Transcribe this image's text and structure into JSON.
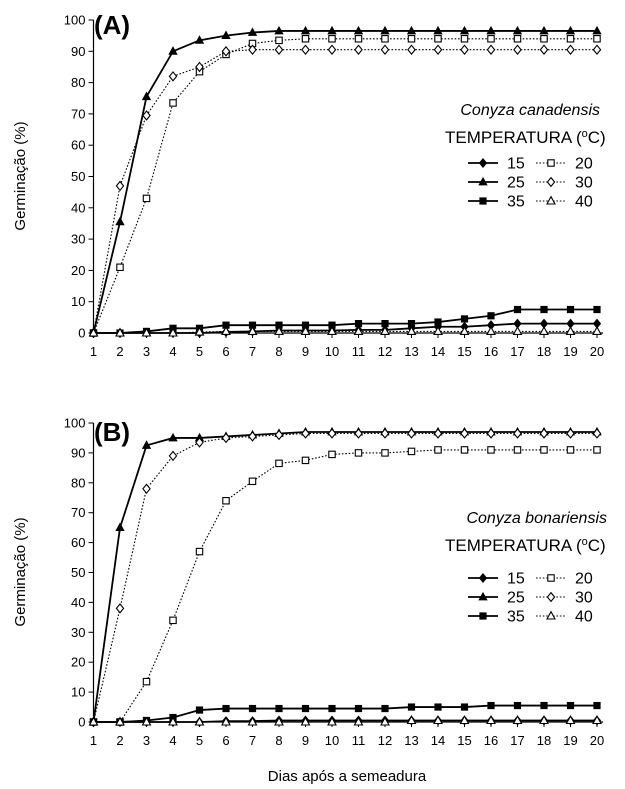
{
  "chart_data": [
    {
      "type": "line",
      "panel_label": "(A)",
      "species": "Conyza canadensis",
      "legend_title": "TEMPERATURA (",
      "legend_title_sup": "o",
      "legend_title_end": "C)",
      "ylabel": "Germinação (%)",
      "xlabel": "",
      "ylim": [
        0,
        100
      ],
      "yticks": [
        0,
        10,
        20,
        30,
        40,
        50,
        60,
        70,
        80,
        90,
        100
      ],
      "x": [
        1,
        2,
        3,
        4,
        5,
        6,
        7,
        8,
        9,
        10,
        11,
        12,
        13,
        14,
        15,
        16,
        17,
        18,
        19,
        20
      ],
      "series": [
        {
          "name": "15",
          "marker": "diamond",
          "dash": "solid",
          "values": [
            0,
            0,
            0,
            0,
            0,
            0.3,
            0.5,
            0.8,
            0.8,
            0.8,
            1,
            1,
            1.5,
            2,
            2,
            2.5,
            3,
            3,
            3,
            3
          ]
        },
        {
          "name": "20",
          "marker": "square-open",
          "dash": "dotted",
          "values": [
            0,
            21,
            43,
            73.5,
            83.5,
            89,
            92.5,
            93.5,
            94,
            94,
            94,
            94,
            94,
            94,
            94,
            94,
            94,
            94,
            94,
            94
          ]
        },
        {
          "name": "25",
          "marker": "triangle",
          "dash": "solid",
          "values": [
            0,
            35.5,
            75.5,
            90,
            93.5,
            95,
            96,
            96.5,
            96.5,
            96.5,
            96.5,
            96.5,
            96.5,
            96.5,
            96.5,
            96.5,
            96.5,
            96.5,
            96.5,
            96.5
          ]
        },
        {
          "name": "30",
          "marker": "diamond-open",
          "dash": "dotted",
          "values": [
            0,
            47,
            69.5,
            82,
            85,
            90,
            90.5,
            90.5,
            90.5,
            90.5,
            90.5,
            90.5,
            90.5,
            90.5,
            90.5,
            90.5,
            90.5,
            90.5,
            90.5,
            90.5
          ]
        },
        {
          "name": "35",
          "marker": "square",
          "dash": "solid",
          "values": [
            0,
            0,
            0.5,
            1.5,
            1.5,
            2.5,
            2.5,
            2.5,
            2.5,
            2.5,
            3,
            3,
            3,
            3.5,
            4.5,
            5.5,
            7.5,
            7.5,
            7.5,
            7.5
          ]
        },
        {
          "name": "40",
          "marker": "triangle-open",
          "dash": "dotted",
          "values": [
            0,
            0,
            0,
            0,
            0.3,
            0.5,
            0.5,
            0.5,
            0.5,
            0.5,
            0.5,
            0.5,
            0.5,
            0.5,
            0.5,
            0.5,
            0.5,
            0.5,
            0.5,
            0.5
          ]
        }
      ]
    },
    {
      "type": "line",
      "panel_label": "(B)",
      "species": "Conyza bonariensis",
      "legend_title": "TEMPERATURA (",
      "legend_title_sup": "o",
      "legend_title_end": "C)",
      "ylabel": "Germinação (%)",
      "xlabel": "Dias após a semeadura",
      "ylim": [
        0,
        100
      ],
      "yticks": [
        0,
        10,
        20,
        30,
        40,
        50,
        60,
        70,
        80,
        90,
        100
      ],
      "x": [
        1,
        2,
        3,
        4,
        5,
        6,
        7,
        8,
        9,
        10,
        11,
        12,
        13,
        14,
        15,
        16,
        17,
        18,
        19,
        20
      ],
      "series": [
        {
          "name": "15",
          "marker": "diamond",
          "dash": "solid",
          "values": [
            0,
            0,
            0,
            0,
            0,
            0.3,
            0.3,
            0.5,
            0.5,
            0.5,
            0.5,
            0.5,
            0.5,
            0.5,
            0.5,
            0.5,
            0.5,
            0.5,
            0.5,
            0.5
          ]
        },
        {
          "name": "20",
          "marker": "square-open",
          "dash": "dotted",
          "values": [
            0,
            0,
            13.5,
            34,
            57,
            74,
            80.5,
            86.5,
            87.5,
            89.5,
            90,
            90,
            90.5,
            91,
            91,
            91,
            91,
            91,
            91,
            91
          ]
        },
        {
          "name": "25",
          "marker": "triangle",
          "dash": "solid",
          "values": [
            0,
            65,
            92.5,
            95,
            95,
            95.5,
            96,
            96.5,
            97,
            97,
            97,
            97,
            97,
            97,
            97,
            97,
            97,
            97,
            97,
            97
          ]
        },
        {
          "name": "30",
          "marker": "diamond-open",
          "dash": "dotted",
          "values": [
            0,
            38,
            78,
            89,
            93.5,
            95,
            95.5,
            96,
            96.5,
            96.5,
            96.5,
            96.5,
            96.5,
            96.5,
            96.5,
            96.5,
            96.5,
            96.5,
            96.5,
            96.5
          ]
        },
        {
          "name": "35",
          "marker": "square",
          "dash": "solid",
          "values": [
            0,
            0,
            0.5,
            1.5,
            4,
            4.5,
            4.5,
            4.5,
            4.5,
            4.5,
            4.5,
            4.5,
            5,
            5,
            5,
            5.5,
            5.5,
            5.5,
            5.5,
            5.5
          ]
        },
        {
          "name": "40",
          "marker": "triangle-open",
          "dash": "dotted",
          "values": [
            0,
            0,
            0,
            0,
            0,
            0,
            0,
            0,
            0,
            0,
            0,
            0,
            0.5,
            0.5,
            0.5,
            0.5,
            0.5,
            0.5,
            0.5,
            0.5
          ]
        }
      ]
    }
  ]
}
